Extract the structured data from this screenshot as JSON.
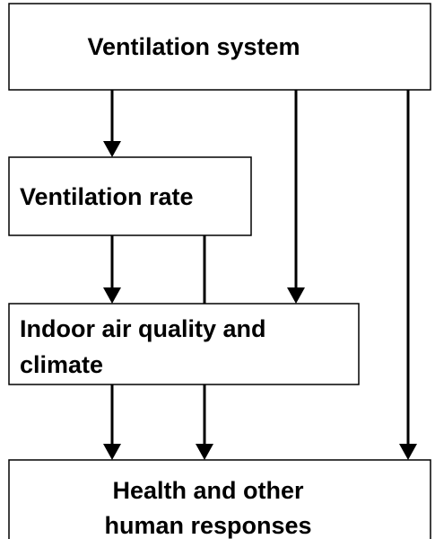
{
  "nodes": [
    {
      "lines": [
        "Ventilation system"
      ]
    },
    {
      "lines": [
        "Ventilation rate"
      ]
    },
    {
      "lines": [
        "Indoor air quality and",
        "climate"
      ]
    },
    {
      "lines": [
        "Health and other",
        "human responses"
      ]
    }
  ]
}
